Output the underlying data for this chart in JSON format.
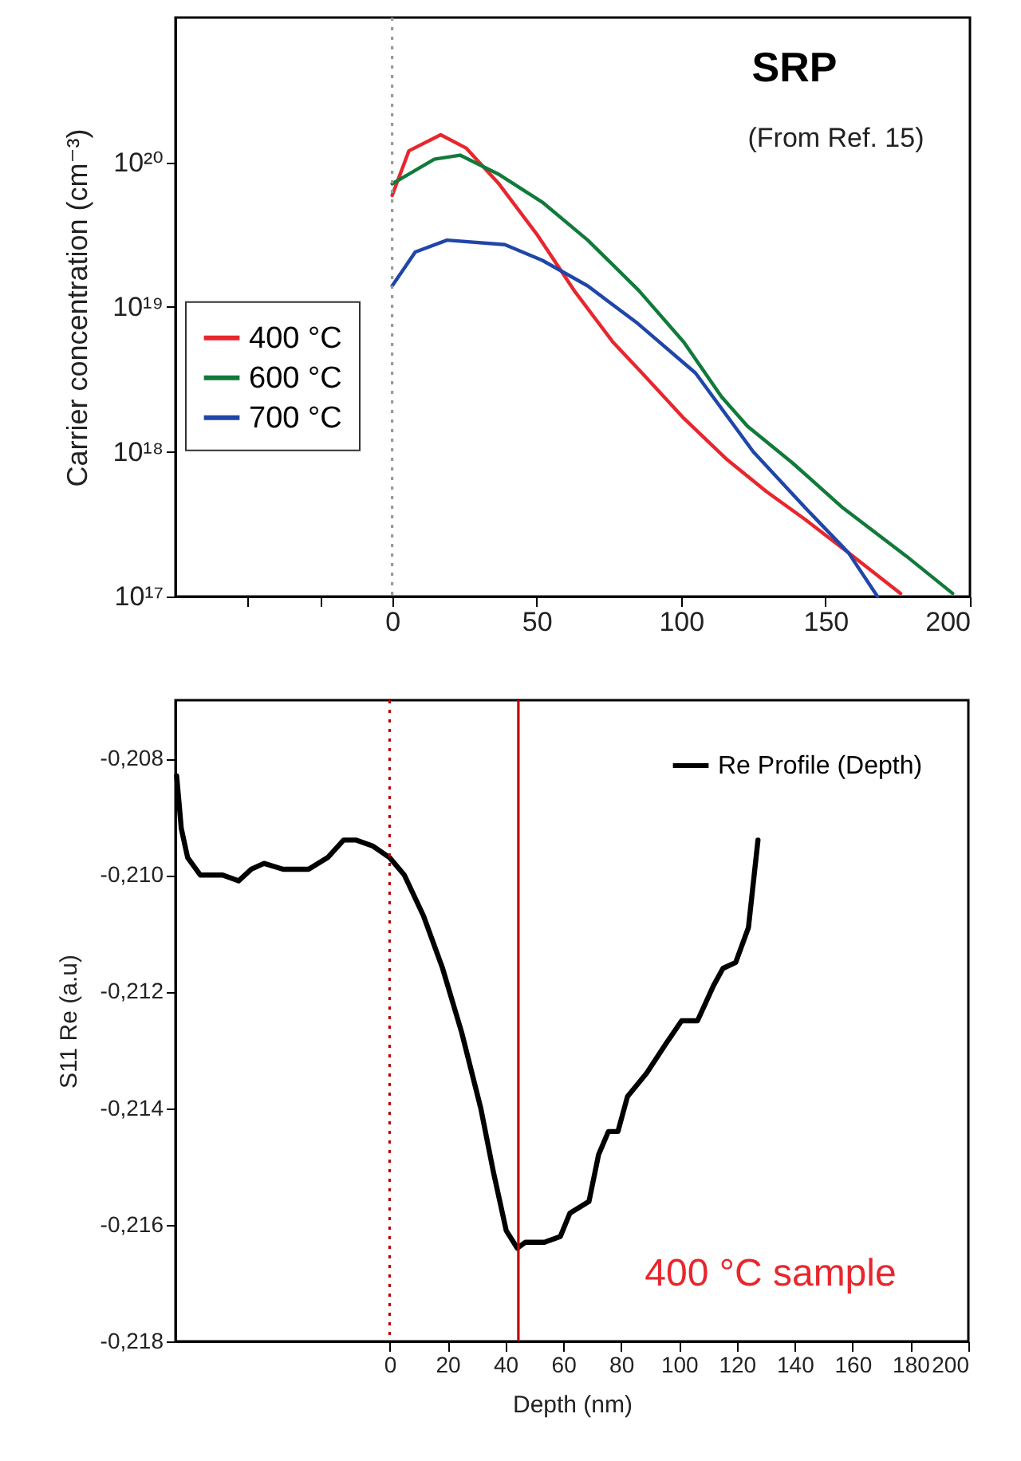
{
  "chart_data": [
    {
      "type": "line",
      "ylabel": "Carrier concentration (cm⁻³)",
      "log": true,
      "grid": false,
      "legend": "left",
      "line_style": "solid",
      "marker": "none",
      "xlim": [
        -75,
        200
      ],
      "xticks": [
        {
          "value": -50,
          "label": null
        },
        {
          "value": -25,
          "label": null
        },
        0,
        50,
        100,
        150,
        200
      ],
      "ylim": [
        1e+17,
        1e+21
      ],
      "yticks": [
        {
          "value": 1e+17,
          "label": "10¹⁷"
        },
        {
          "value": 1e+18,
          "label": "10¹⁸"
        },
        {
          "value": 1e+19,
          "label": "10¹⁹"
        },
        {
          "value": 1e+20,
          "label": "10²⁰"
        }
      ],
      "annotations": [
        "SRP",
        "(From Ref. 15)"
      ],
      "ref_lines": [
        {
          "axis": "x",
          "value": 0,
          "label": null,
          "color": "#999999",
          "line_style": "dotted"
        }
      ],
      "series": [
        {
          "name": "400 °C",
          "color": "#e8262d",
          "x": [
            0,
            5.8,
            16.8,
            25.7,
            36.7,
            50,
            63,
            76.5,
            86.5,
            101,
            116,
            129.6,
            143,
            158,
            176
          ],
          "values": [
            5.9e+19,
            1.2e+20,
            1.55e+20,
            1.25e+20,
            7.2e+19,
            3.2e+19,
            1.3e+19,
            5.7e+18,
            3.5e+18,
            1.7e+18,
            8.8e+17,
            5.3e+17,
            3.4e+17,
            2e+17,
            1.05e+17
          ]
        },
        {
          "name": "600 °C",
          "color": "#117a3a",
          "x": [
            0,
            14.6,
            23.5,
            36.7,
            52,
            67.7,
            85.4,
            101,
            114,
            123,
            138.5,
            156,
            178,
            194
          ],
          "values": [
            7.1e+19,
            1.05e+20,
            1.12e+20,
            8.3e+19,
            5.3e+19,
            2.9e+19,
            1.3e+19,
            5.7e+18,
            2.4e+18,
            1.5e+18,
            8.4e+17,
            4.1e+17,
            1.9e+17,
            1.05e+17
          ]
        },
        {
          "name": "700 °C",
          "color": "#1f46a8",
          "x": [
            0,
            8,
            19,
            39,
            52,
            67.7,
            85,
            105,
            125,
            143,
            158,
            168
          ],
          "values": [
            1.4e+19,
            2.4e+19,
            2.9e+19,
            2.7e+19,
            2.1e+19,
            1.4e+19,
            7.7e+18,
            3.5e+18,
            1e+18,
            4.1e+17,
            2e+17,
            1e+17
          ]
        }
      ]
    },
    {
      "type": "line",
      "xlabel": "Depth (nm)",
      "ylabel": "S11 Re (a.u)",
      "grid": false,
      "legend": "top right",
      "line_style": "solid",
      "marker": "none",
      "xlim": [
        -74,
        200
      ],
      "xticks": [
        0,
        20,
        40,
        60,
        80,
        100,
        120,
        140,
        160,
        180,
        200
      ],
      "ylim": [
        -0.218,
        -0.207
      ],
      "yticks": [
        {
          "value": -0.218,
          "label": "-0,218"
        },
        {
          "value": -0.216,
          "label": "-0,216"
        },
        {
          "value": -0.214,
          "label": "-0,214"
        },
        {
          "value": -0.212,
          "label": "-0,212"
        },
        {
          "value": -0.21,
          "label": "-0,210"
        },
        {
          "value": -0.208,
          "label": "-0,208"
        }
      ],
      "annotations": [
        "400 °C sample"
      ],
      "ref_lines": [
        {
          "axis": "x",
          "value": 0,
          "label": null,
          "color": "#c00000",
          "line_style": "dotted"
        },
        {
          "axis": "x",
          "value": 44.5,
          "label": null,
          "color": "#c00000",
          "line_style": "solid"
        }
      ],
      "series": [
        {
          "name": "Re Profile (Depth)",
          "color": "#000000",
          "x": [
            -73.6,
            -72.7,
            -72,
            -69.8,
            -65.4,
            -61,
            -57.7,
            -52.2,
            -47.8,
            -43.4,
            -36.8,
            -28,
            -21.4,
            -15.9,
            -11.5,
            -5.9,
            0,
            5.1,
            11.7,
            18.3,
            24.9,
            31.5,
            35.9,
            40.3,
            44.1,
            46.9,
            53.5,
            59,
            62.3,
            68.9,
            72.2,
            75.6,
            78.9,
            82.2,
            88.8,
            95.4,
            100.9,
            106.4,
            111.9,
            115.2,
            119.6,
            124,
            127.3
          ],
          "values": [
            -0.2083,
            -0.2088,
            -0.2092,
            -0.2097,
            -0.21,
            -0.21,
            -0.21,
            -0.2101,
            -0.2099,
            -0.2098,
            -0.2099,
            -0.2099,
            -0.2097,
            -0.2094,
            -0.2094,
            -0.2095,
            -0.2097,
            -0.21,
            -0.2107,
            -0.2116,
            -0.2127,
            -0.214,
            -0.2151,
            -0.2161,
            -0.2164,
            -0.2163,
            -0.2163,
            -0.2162,
            -0.2158,
            -0.2156,
            -0.2148,
            -0.2144,
            -0.2144,
            -0.2138,
            -0.2134,
            -0.2129,
            -0.2125,
            -0.2125,
            -0.2119,
            -0.2116,
            -0.2115,
            -0.2109,
            -0.2094
          ]
        }
      ]
    }
  ]
}
